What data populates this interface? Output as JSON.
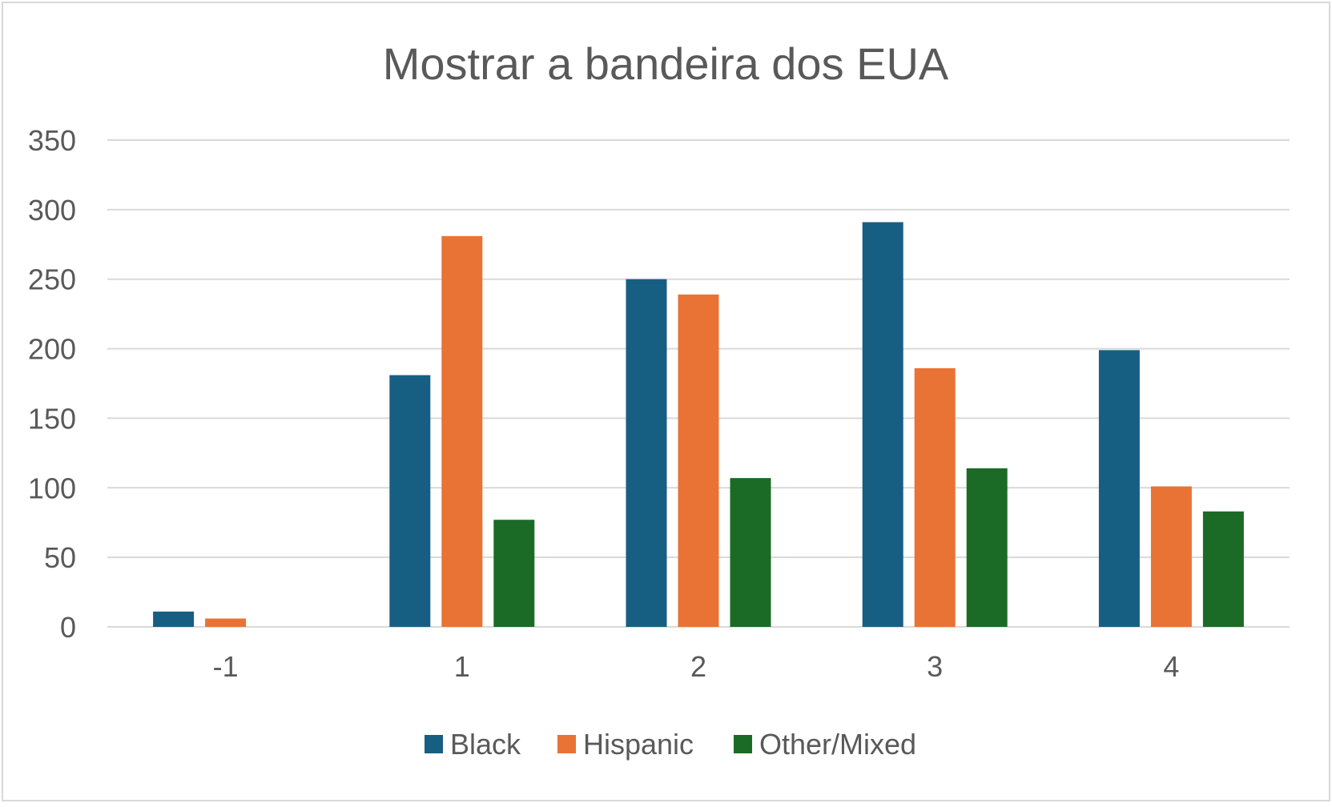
{
  "chart_data": {
    "type": "bar",
    "title": "Mostrar a bandeira dos EUA",
    "xlabel": "",
    "ylabel": "",
    "categories": [
      "-1",
      "1",
      "2",
      "3",
      "4"
    ],
    "series": [
      {
        "name": "Black",
        "color": "#175E83",
        "values": [
          11,
          181,
          250,
          291,
          199
        ]
      },
      {
        "name": "Hispanic",
        "color": "#E97334",
        "values": [
          6,
          281,
          239,
          186,
          101
        ]
      },
      {
        "name": "Other/Mixed",
        "color": "#1B6B26",
        "values": [
          null,
          77,
          107,
          114,
          83
        ]
      }
    ],
    "ylim": [
      0,
      350
    ],
    "yticks": [
      "0",
      "50",
      "100",
      "150",
      "200",
      "250",
      "300",
      "350"
    ],
    "grid": true,
    "legend": "bottom"
  }
}
